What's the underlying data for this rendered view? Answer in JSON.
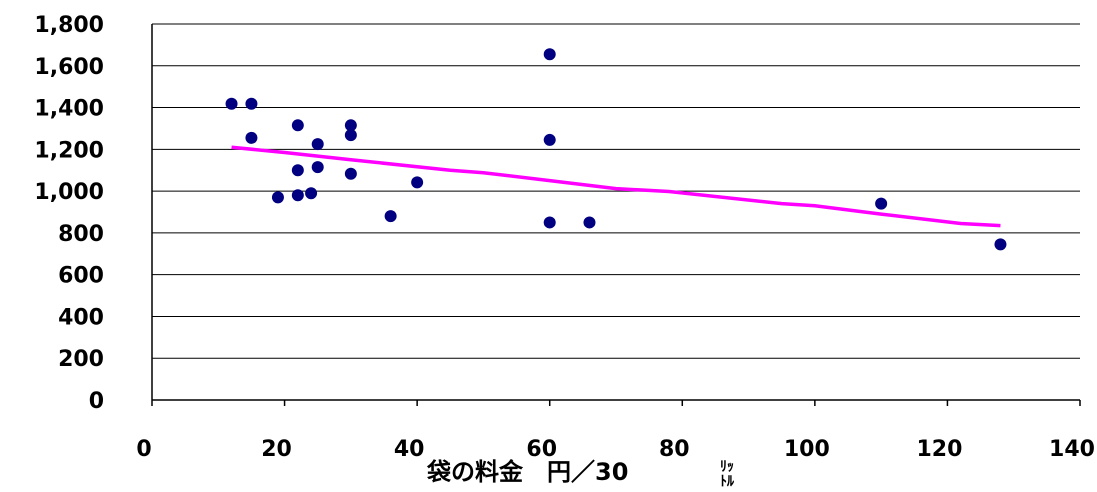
{
  "chart_data": {
    "type": "scatter",
    "xlabel": "袋の料金　円／30",
    "xlabel_unit_top": "ﾘｯ",
    "xlabel_unit_bottom": "ﾄﾙ",
    "ylabel": "",
    "xlim": [
      0,
      140
    ],
    "ylim": [
      0,
      1800
    ],
    "x_ticks": [
      0,
      20,
      40,
      60,
      80,
      100,
      120,
      140
    ],
    "x_tick_labels": [
      "0",
      "20",
      "40",
      "60",
      "80",
      "100",
      "120",
      "140"
    ],
    "y_ticks": [
      0,
      200,
      400,
      600,
      800,
      1000,
      1200,
      1400,
      1600,
      1800
    ],
    "y_tick_labels": [
      "0",
      "200",
      "400",
      "600",
      "800",
      "1,000",
      "1,200",
      "1,400",
      "1,600",
      "1,800"
    ],
    "grid": "horizontal",
    "legend": "none",
    "series": [
      {
        "kind": "scatter",
        "color": "#000080",
        "points": [
          {
            "x": 12,
            "y": 1418
          },
          {
            "x": 15,
            "y": 1418
          },
          {
            "x": 15,
            "y": 1255
          },
          {
            "x": 19,
            "y": 970
          },
          {
            "x": 22,
            "y": 1315
          },
          {
            "x": 22,
            "y": 1100
          },
          {
            "x": 22,
            "y": 980
          },
          {
            "x": 24,
            "y": 990
          },
          {
            "x": 25,
            "y": 1225
          },
          {
            "x": 25,
            "y": 1115
          },
          {
            "x": 30,
            "y": 1315
          },
          {
            "x": 30,
            "y": 1268
          },
          {
            "x": 30,
            "y": 1083
          },
          {
            "x": 36,
            "y": 880
          },
          {
            "x": 40,
            "y": 1042
          },
          {
            "x": 60,
            "y": 1655
          },
          {
            "x": 60,
            "y": 1245
          },
          {
            "x": 60,
            "y": 850
          },
          {
            "x": 66,
            "y": 850
          },
          {
            "x": 110,
            "y": 940
          },
          {
            "x": 128,
            "y": 745
          }
        ]
      },
      {
        "kind": "line",
        "color": "#FF00FF",
        "points": [
          {
            "x": 12,
            "y": 1210
          },
          {
            "x": 20,
            "y": 1185
          },
          {
            "x": 30,
            "y": 1150
          },
          {
            "x": 45,
            "y": 1100
          },
          {
            "x": 50,
            "y": 1088
          },
          {
            "x": 60,
            "y": 1050
          },
          {
            "x": 70,
            "y": 1012
          },
          {
            "x": 78,
            "y": 998
          },
          {
            "x": 95,
            "y": 940
          },
          {
            "x": 100,
            "y": 930
          },
          {
            "x": 110,
            "y": 890
          },
          {
            "x": 122,
            "y": 845
          },
          {
            "x": 128,
            "y": 835
          }
        ]
      }
    ]
  }
}
